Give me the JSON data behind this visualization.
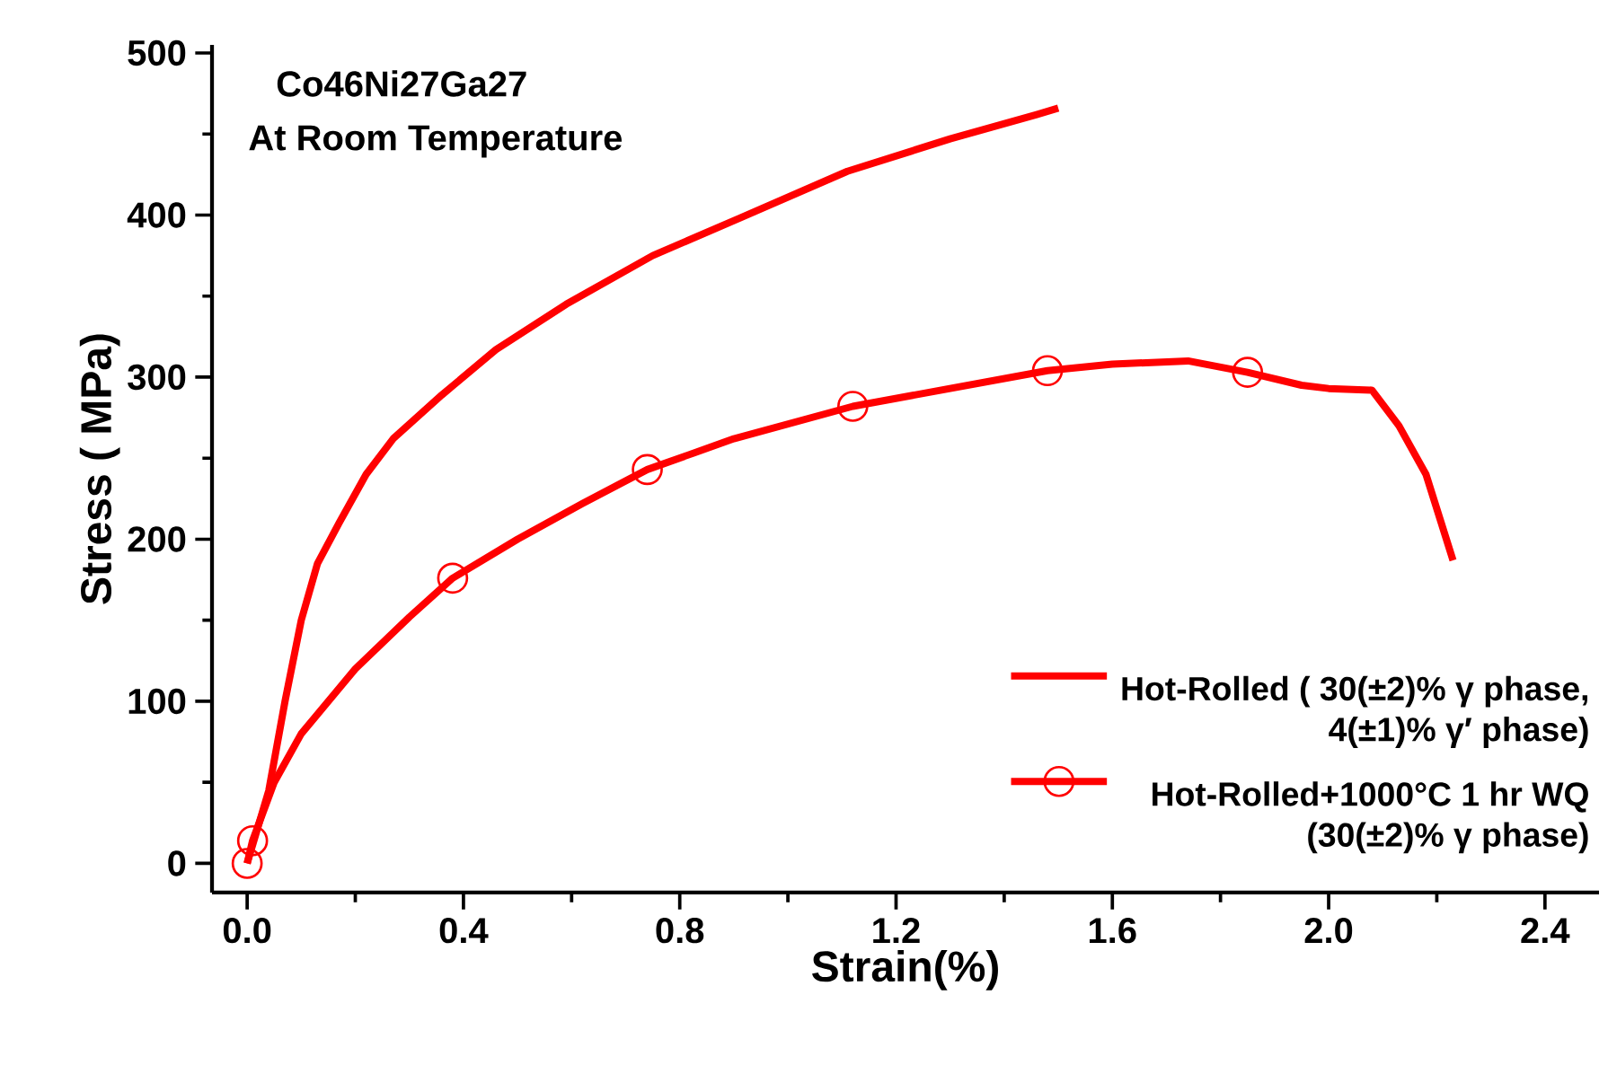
{
  "chart_data": {
    "type": "line",
    "xlabel": "Strain(%)",
    "ylabel": "Stress ( MPa)",
    "annotations": [
      "Co46Ni27Ga27",
      "At Room Temperature"
    ],
    "xlim": [
      -0.065,
      2.5
    ],
    "ylim": [
      -18,
      505
    ],
    "xticks": [
      {
        "value": 0,
        "label": "0.0"
      },
      0.4,
      0.8,
      1.2,
      1.6,
      {
        "value": 2,
        "label": "2.0"
      },
      2.4
    ],
    "yticks": [
      0,
      100,
      200,
      300,
      400,
      500
    ],
    "legend": "bottom right",
    "series": [
      {
        "name": "Hot-Rolled ( 30(±2)%  γ phase, 4(±1)%  γ′ phase)",
        "color": "#ff0000",
        "marker": "none",
        "x": [
          0,
          0.04,
          0.07,
          0.1,
          0.13,
          0.17,
          0.22,
          0.27,
          0.36,
          0.46,
          0.59,
          0.75,
          0.91,
          1.11,
          1.3,
          1.46,
          1.5
        ],
        "values": [
          0,
          45,
          100,
          150,
          185,
          210,
          240,
          262,
          289,
          317,
          345,
          375,
          398,
          427,
          447,
          462,
          466
        ]
      },
      {
        "color": "#ff0000",
        "marker": "none",
        "x": [
          0,
          0.01,
          0.05,
          0.1,
          0.2,
          0.3,
          0.38,
          0.5,
          0.62,
          0.74,
          0.9,
          1.12,
          1.3,
          1.48,
          1.6,
          1.74,
          1.85,
          1.95,
          2.0,
          2.08,
          2.13,
          2.18,
          2.23
        ],
        "values": [
          0,
          14,
          50,
          80,
          120,
          152,
          176,
          200,
          222,
          243,
          262,
          282,
          293,
          304,
          308,
          310,
          303,
          295,
          293,
          292,
          270,
          240,
          187
        ]
      },
      {
        "name": "Hot-Rolled+1000°C 1 hr WQ (30(±2)%  γ phase)",
        "color": "#ff0000",
        "type": "scatter",
        "marker": "circle",
        "x": [
          0,
          0.01,
          0.38,
          0.74,
          1.12,
          1.48,
          1.85
        ],
        "values": [
          0,
          14,
          176,
          243,
          282,
          304,
          303
        ]
      }
    ]
  }
}
